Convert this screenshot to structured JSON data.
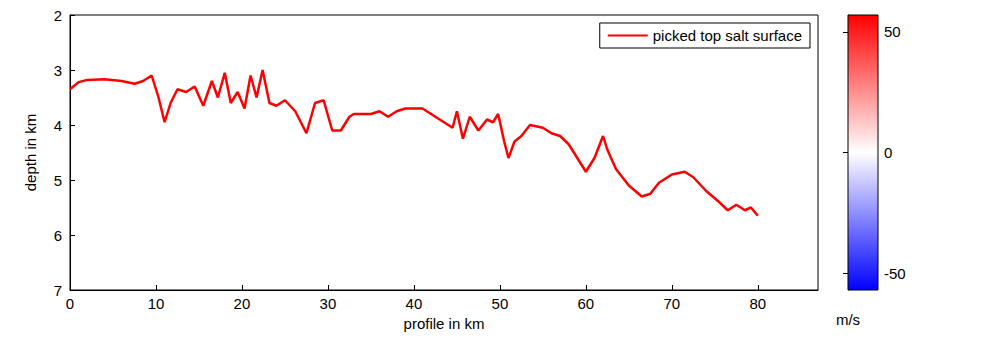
{
  "chart_data": {
    "type": "line",
    "x_label": "profile in km",
    "y_label": "depth in km",
    "xlim": [
      0,
      87
    ],
    "xticks": [
      0,
      10,
      20,
      30,
      40,
      50,
      60,
      70,
      80
    ],
    "ylim": [
      2,
      7
    ],
    "yticks": [
      2,
      3,
      4,
      5,
      6,
      7
    ],
    "legend": "upper right",
    "x": [
      0,
      1,
      2,
      4,
      6,
      7.5,
      8.5,
      9.5,
      10.3,
      11,
      11.7,
      12.5,
      13.5,
      14.5,
      15.5,
      16.5,
      17.2,
      18,
      18.7,
      19.5,
      20.3,
      21,
      21.7,
      22.4,
      23.2,
      24,
      25,
      26.2,
      27.5,
      28.5,
      29.5,
      30.5,
      31.5,
      32.5,
      33,
      35,
      36,
      37,
      38,
      39,
      41,
      42,
      43.5,
      44.5,
      45,
      45.7,
      46.5,
      47.5,
      48.5,
      49.2,
      49.8,
      50.5,
      51,
      51.7,
      52.5,
      53.5,
      55,
      56,
      57,
      58,
      59,
      60,
      61,
      62,
      62.5,
      63.5,
      65,
      66.5,
      67.5,
      68.5,
      70,
      71.5,
      72.5,
      74,
      75.5,
      76.5,
      77.5,
      78.5,
      79.2,
      80
    ],
    "series": [
      {
        "name": "picked top salt surface",
        "color": "#ff0000",
        "values": [
          3.35,
          3.22,
          3.18,
          3.17,
          3.2,
          3.25,
          3.2,
          3.1,
          3.5,
          3.95,
          3.6,
          3.35,
          3.4,
          3.3,
          3.65,
          3.2,
          3.5,
          3.05,
          3.6,
          3.4,
          3.7,
          3.1,
          3.5,
          3.0,
          3.6,
          3.65,
          3.55,
          3.75,
          4.15,
          3.6,
          3.55,
          4.1,
          4.1,
          3.85,
          3.8,
          3.8,
          3.75,
          3.85,
          3.75,
          3.7,
          3.7,
          3.8,
          3.95,
          4.05,
          3.75,
          4.25,
          3.85,
          4.1,
          3.9,
          3.95,
          3.8,
          4.3,
          4.6,
          4.3,
          4.2,
          4.0,
          4.05,
          4.15,
          4.2,
          4.35,
          4.6,
          4.85,
          4.6,
          4.2,
          4.45,
          4.8,
          5.1,
          5.3,
          5.25,
          5.05,
          4.9,
          4.85,
          4.95,
          5.2,
          5.4,
          5.55,
          5.45,
          5.55,
          5.5,
          5.65
        ]
      }
    ],
    "colorbar": {
      "label": "m/s",
      "range": [
        -57,
        57
      ],
      "ticks": [
        -50,
        0,
        50
      ]
    }
  }
}
